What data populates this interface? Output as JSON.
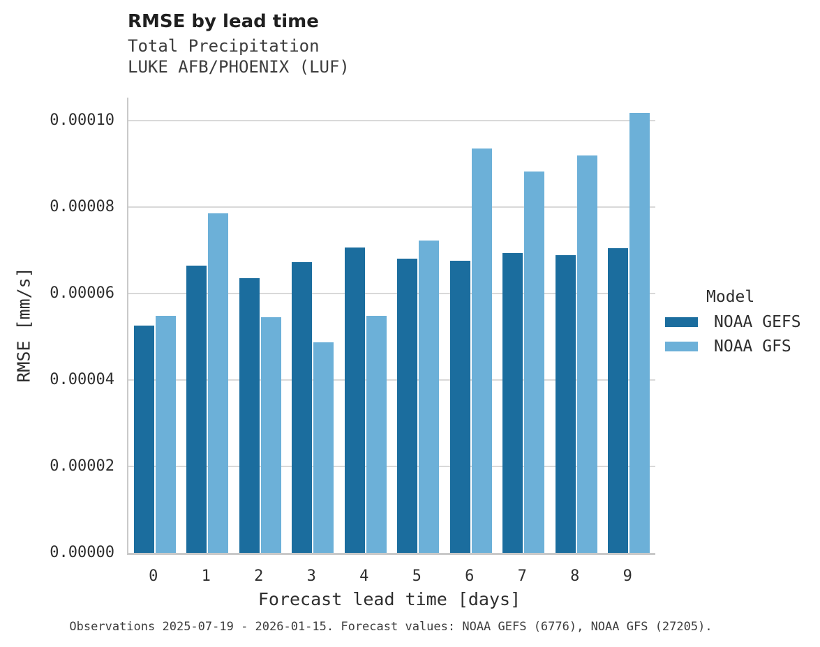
{
  "header": {
    "title": "RMSE by lead time",
    "subtitle_line1": "Total Precipitation",
    "subtitle_line2": "LUKE AFB/PHOENIX (LUF)"
  },
  "chart_data": {
    "type": "bar",
    "title": "RMSE by lead time",
    "subtitle": [
      "Total Precipitation",
      "LUKE AFB/PHOENIX (LUF)"
    ],
    "xlabel": "Forecast lead time [days]",
    "ylabel": "RMSE [mm/s]",
    "categories": [
      "0",
      "1",
      "2",
      "3",
      "4",
      "5",
      "6",
      "7",
      "8",
      "9"
    ],
    "series": [
      {
        "name": "NOAA GEFS",
        "color": "#1b6d9e",
        "values": [
          5.25e-05,
          6.65e-05,
          6.35e-05,
          6.73e-05,
          7.06e-05,
          6.8e-05,
          6.75e-05,
          6.93e-05,
          6.89e-05,
          7.05e-05
        ]
      },
      {
        "name": "NOAA GFS",
        "color": "#6cb0d8",
        "values": [
          5.48e-05,
          7.85e-05,
          5.45e-05,
          4.87e-05,
          5.49e-05,
          7.22e-05,
          9.35e-05,
          8.82e-05,
          9.19e-05,
          0.0001017
        ]
      }
    ],
    "ylim": [
      0,
      0.0001053
    ],
    "yticks": [
      0,
      2e-05,
      4e-05,
      6e-05,
      8e-05,
      0.0001
    ],
    "ytick_labels": [
      "0.00000",
      "0.00002",
      "0.00004",
      "0.00006",
      "0.00008",
      "0.00010"
    ],
    "grid": "horizontal",
    "legend_title": "Model",
    "legend_position": "right"
  },
  "legend": {
    "title": "Model",
    "items": [
      {
        "label": "NOAA GEFS",
        "color": "#1b6d9e"
      },
      {
        "label": "NOAA GFS",
        "color": "#6cb0d8"
      }
    ]
  },
  "footer": {
    "text": "Observations 2025-07-19 - 2026-01-15. Forecast values: NOAA GEFS (6776), NOAA GFS (27205)."
  }
}
